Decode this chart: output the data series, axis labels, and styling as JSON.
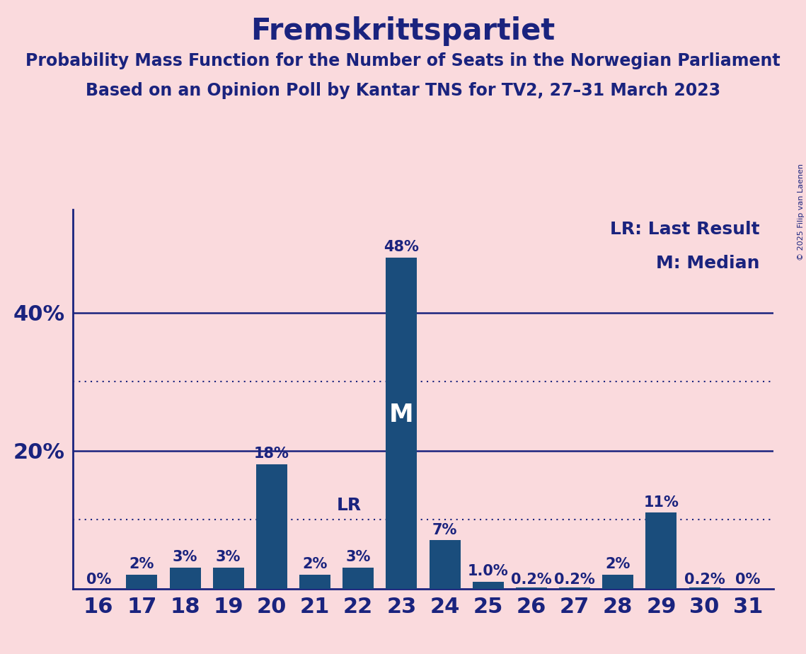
{
  "title": "Fremskrittspartiet",
  "subtitle1": "Probability Mass Function for the Number of Seats in the Norwegian Parliament",
  "subtitle2": "Based on an Opinion Poll by Kantar TNS for TV2, 27–31 March 2023",
  "copyright": "© 2025 Filip van Laenen",
  "categories": [
    16,
    17,
    18,
    19,
    20,
    21,
    22,
    23,
    24,
    25,
    26,
    27,
    28,
    29,
    30,
    31
  ],
  "values": [
    0.0,
    2.0,
    3.0,
    3.0,
    18.0,
    2.0,
    3.0,
    48.0,
    7.0,
    1.0,
    0.2,
    0.2,
    2.0,
    11.0,
    0.2,
    0.0
  ],
  "labels": [
    "0%",
    "2%",
    "3%",
    "3%",
    "18%",
    "2%",
    "3%",
    "48%",
    "7%",
    "1.0%",
    "0.2%",
    "0.2%",
    "2%",
    "11%",
    "0.2%",
    "0%"
  ],
  "bar_color": "#1a4d7c",
  "background_color": "#fadadd",
  "text_color": "#1a237e",
  "median_seat": 23,
  "last_result_seat": 21,
  "legend_lr": "LR: Last Result",
  "legend_m": "M: Median",
  "solid_gridlines": [
    20.0,
    40.0
  ],
  "dotted_gridlines": [
    10.0,
    30.0
  ],
  "ylim": [
    0,
    55
  ],
  "title_fontsize": 30,
  "subtitle_fontsize": 17,
  "axis_fontsize": 22,
  "label_fontsize": 15,
  "legend_fontsize": 18
}
